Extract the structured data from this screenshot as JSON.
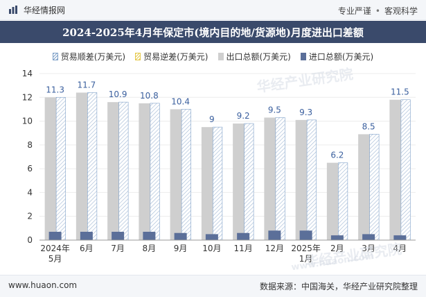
{
  "header": {
    "brand_name": "华经情报网",
    "slogan_left": "专业严谨",
    "slogan_sep": "•",
    "slogan_right": "客观科学"
  },
  "colors": {
    "title_bg": "#3a4a6b",
    "export_bar": "#cfcfcf",
    "import_bar": "#5b6f99",
    "surplus_hatch": "#7ea0c8",
    "deficit_hatch": "#e5c84a"
  },
  "legend": {
    "surplus": "贸易顺差(万美元)",
    "deficit": "贸易逆差(万美元)",
    "export": "出口总额(万美元)",
    "import": "进口总额(万美元)"
  },
  "watermarks": [
    "华经产业研究院",
    "www.huaon.com",
    "华经产业研究院"
  ],
  "chart_data": {
    "type": "bar",
    "title": "2024-2025年4月年保定市(境内目的地/货源地)月度进出口差额",
    "categories": [
      "2024年\n5月",
      "6月",
      "7月",
      "8月",
      "9月",
      "10月",
      "11月",
      "12月",
      "2025年\n1月",
      "2月",
      "3月",
      "4月"
    ],
    "series": [
      {
        "name": "贸易顺差(万美元)",
        "values": [
          11.3,
          11.7,
          10.9,
          10.8,
          10.4,
          9,
          9.2,
          9.5,
          9.3,
          6.2,
          8.5,
          11.5
        ]
      },
      {
        "name": "贸易逆差(万美元)",
        "values": [
          0,
          0,
          0,
          0,
          0,
          0,
          0,
          0,
          0,
          0,
          0,
          0
        ]
      },
      {
        "name": "出口总额(万美元)",
        "values": [
          12.0,
          12.4,
          11.6,
          11.5,
          11.0,
          9.5,
          9.8,
          10.3,
          10.1,
          6.5,
          8.9,
          11.8
        ]
      },
      {
        "name": "进口总额(万美元)",
        "values": [
          0.7,
          0.7,
          0.7,
          0.7,
          0.6,
          0.5,
          0.6,
          0.8,
          0.8,
          0.4,
          0.5,
          0.4
        ]
      }
    ],
    "data_labels": [
      "11.3",
      "11.7",
      "10.9",
      "10.8",
      "10.4",
      "9",
      "9.2",
      "9.5",
      "9.3",
      "6.2",
      "8.5",
      "11.5"
    ],
    "ylim": [
      0,
      14
    ],
    "yticks": [
      0,
      2,
      4,
      6,
      8,
      10,
      12,
      14
    ],
    "xlabel": "",
    "ylabel": "",
    "grid": true,
    "legend_position": "top"
  },
  "footer": {
    "url": "www.huaon.com",
    "source": "数据来源：中国海关，华经产业研究院整理"
  }
}
